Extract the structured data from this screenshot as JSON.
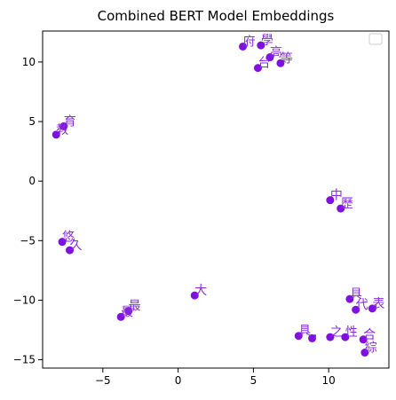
{
  "chart_data": {
    "type": "scatter",
    "title": "Combined BERT Model Embeddings",
    "xlabel": "",
    "ylabel": "",
    "xlim": [
      -9,
      14
    ],
    "ylim": [
      -15.7,
      12.6
    ],
    "xticks": [
      -5,
      0,
      5,
      10
    ],
    "yticks": [
      -15,
      -10,
      -5,
      0,
      5,
      10
    ],
    "grid": false,
    "legend": "top-right",
    "point_color": "#7f11e0",
    "label_color": "#9932cc",
    "points": [
      {
        "x": 4.3,
        "y": 11.3,
        "label": "府"
      },
      {
        "x": 5.5,
        "y": 11.4,
        "label": "學"
      },
      {
        "x": 6.1,
        "y": 10.4,
        "label": "高"
      },
      {
        "x": 6.8,
        "y": 9.9,
        "label": "等"
      },
      {
        "x": 5.3,
        "y": 9.5,
        "label": "台"
      },
      {
        "x": -7.6,
        "y": 4.6,
        "label": "育"
      },
      {
        "x": -8.1,
        "y": 3.9,
        "label": "教"
      },
      {
        "x": 10.1,
        "y": -1.6,
        "label": "中"
      },
      {
        "x": 10.8,
        "y": -2.3,
        "label": "歷"
      },
      {
        "x": -7.7,
        "y": -5.1,
        "label": "悠"
      },
      {
        "x": -7.2,
        "y": -5.8,
        "label": "久"
      },
      {
        "x": 1.1,
        "y": -9.6,
        "label": "大"
      },
      {
        "x": -3.3,
        "y": -10.9,
        "label": "最"
      },
      {
        "x": -3.8,
        "y": -11.4,
        "label": "最"
      },
      {
        "x": 11.4,
        "y": -9.9,
        "label": "具"
      },
      {
        "x": 11.8,
        "y": -10.8,
        "label": "代"
      },
      {
        "x": 12.9,
        "y": -10.7,
        "label": "表"
      },
      {
        "x": 8.0,
        "y": -13.0,
        "label": "具"
      },
      {
        "x": 8.9,
        "y": -13.2,
        "label": "，"
      },
      {
        "x": 10.1,
        "y": -13.1,
        "label": "之"
      },
      {
        "x": 11.1,
        "y": -13.1,
        "label": "性"
      },
      {
        "x": 12.3,
        "y": -13.3,
        "label": "合"
      },
      {
        "x": 12.4,
        "y": -14.4,
        "label": "綜"
      }
    ]
  }
}
